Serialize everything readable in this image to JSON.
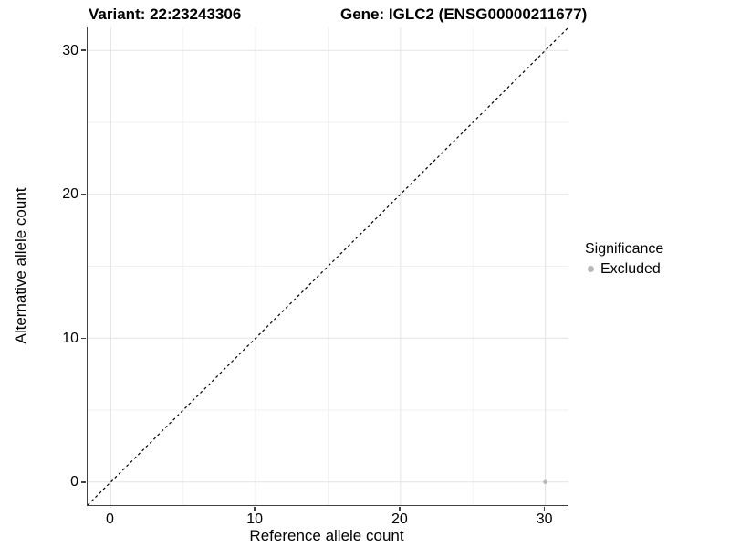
{
  "chart_data": {
    "type": "scatter",
    "titles": {
      "variant": "Variant: 22:23243306",
      "gene": "Gene: IGLC2 (ENSG00000211677)"
    },
    "xlabel": "Reference allele count",
    "ylabel": "Alternative allele count",
    "x_ticks": [
      0,
      10,
      20,
      30
    ],
    "y_ticks": [
      0,
      10,
      20,
      30
    ],
    "x_minor_ticks": [
      5,
      15,
      25
    ],
    "y_minor_ticks": [
      5,
      15,
      25
    ],
    "xlim": [
      -1.6,
      31.6
    ],
    "ylim": [
      -1.6,
      31.6
    ],
    "grid": true,
    "reference_line": {
      "type": "identity",
      "style": "dashed",
      "color": "#000000"
    },
    "points": [
      {
        "x": 30,
        "y": 0,
        "series": "Excluded"
      }
    ],
    "legend": {
      "title": "Significance",
      "position": "right",
      "entries": [
        {
          "label": "Excluded",
          "color": "#b9b9b9"
        }
      ]
    },
    "colors": {
      "point": "#b9b9b9",
      "axis": "#404040",
      "grid_major": "#e4e4e4",
      "grid_minor": "#f2f2f2",
      "background": "#ffffff"
    }
  }
}
